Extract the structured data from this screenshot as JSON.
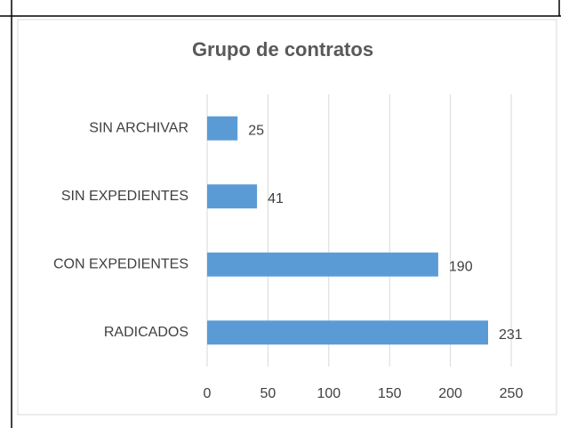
{
  "chart_data": {
    "type": "bar",
    "orientation": "horizontal",
    "title": "Grupo de contratos",
    "categories": [
      "SIN ARCHIVAR",
      "SIN EXPEDIENTES",
      "CON EXPEDIENTES",
      "RADICADOS"
    ],
    "values": [
      25,
      41,
      190,
      231
    ],
    "color": "#5b9bd5",
    "xlim": [
      0,
      250
    ],
    "xticks": [
      0,
      50,
      100,
      150,
      200,
      250
    ],
    "grid": true
  }
}
